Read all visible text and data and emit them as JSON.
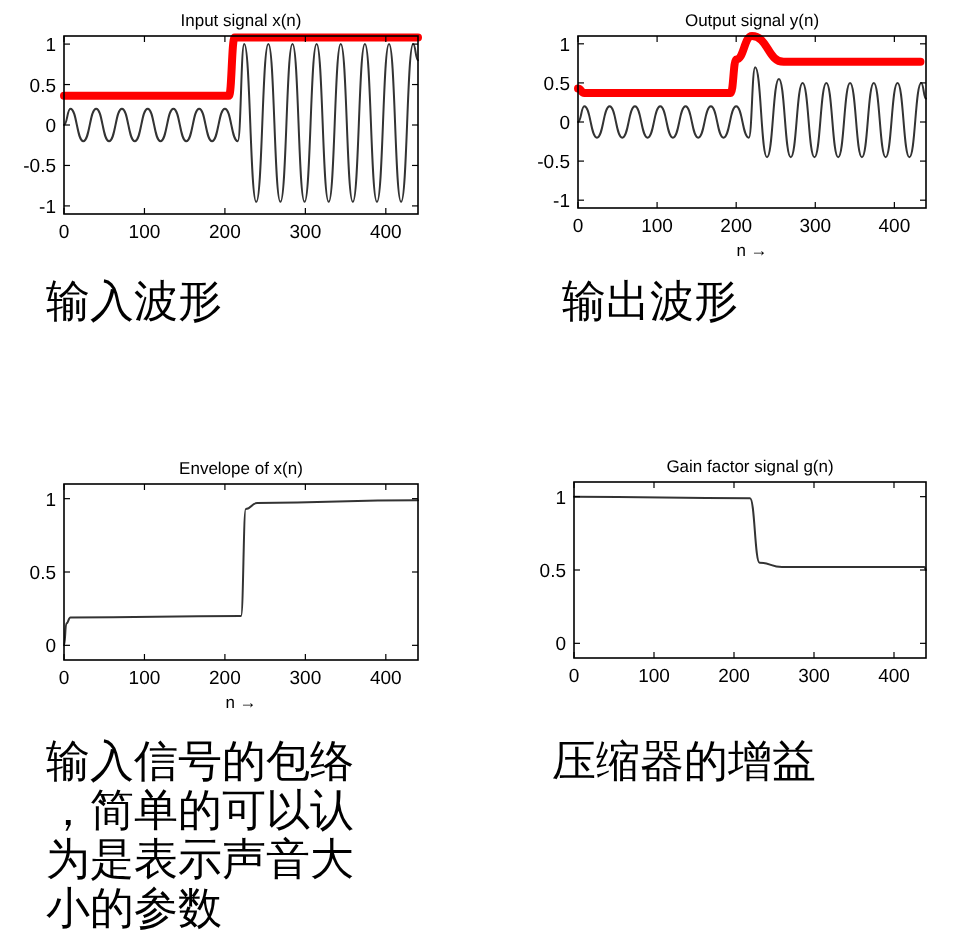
{
  "chart_data": [
    {
      "type": "line",
      "title": "Input signal x(n)",
      "xlim": [
        0,
        440
      ],
      "ylim": [
        -1.1,
        1.1
      ],
      "xticks": [
        0,
        100,
        200,
        300,
        400
      ],
      "yticks": [
        -1,
        -0.5,
        0,
        0.5,
        1
      ],
      "annotations": [
        "输入波形"
      ],
      "series": [
        {
          "color": "#333333",
          "x": [
            0,
            8,
            24,
            40,
            56,
            72,
            88,
            104,
            120,
            136,
            152,
            168,
            184,
            200,
            216,
            224,
            239,
            254,
            269,
            284,
            299,
            314,
            329,
            344,
            359,
            374,
            389,
            404,
            419,
            434,
            440
          ],
          "values": [
            0,
            0.2,
            -0.2,
            0.2,
            -0.2,
            0.2,
            -0.2,
            0.2,
            -0.2,
            0.2,
            -0.2,
            0.2,
            -0.2,
            0.2,
            -0.2,
            1,
            -0.95,
            1,
            -0.95,
            1,
            -0.95,
            1,
            -0.95,
            1,
            -0.95,
            1,
            -0.95,
            1,
            -0.95,
            1,
            0.8
          ]
        },
        {
          "color": "#ff0000",
          "x": [
            0,
            205,
            212,
            440
          ],
          "values": [
            0.36,
            0.36,
            1.08,
            1.08
          ]
        }
      ]
    },
    {
      "type": "line",
      "title": "Output signal y(n)",
      "xlabel": "n →",
      "xlim": [
        0,
        440
      ],
      "ylim": [
        -1.1,
        1.1
      ],
      "xticks": [
        0,
        100,
        200,
        300,
        400
      ],
      "yticks": [
        -1,
        -0.5,
        0,
        0.5,
        1
      ],
      "annotations": [
        "输出波形"
      ],
      "series": [
        {
          "color": "#333333",
          "x": [
            0,
            8,
            24,
            40,
            56,
            72,
            88,
            104,
            120,
            136,
            152,
            168,
            184,
            200,
            216,
            224,
            239,
            254,
            269,
            284,
            299,
            314,
            329,
            344,
            359,
            374,
            389,
            404,
            419,
            434,
            440
          ],
          "values": [
            0,
            0.2,
            -0.2,
            0.2,
            -0.2,
            0.2,
            -0.2,
            0.2,
            -0.2,
            0.2,
            -0.2,
            0.2,
            -0.2,
            0.2,
            -0.2,
            0.7,
            -0.45,
            0.55,
            -0.45,
            0.5,
            -0.45,
            0.5,
            -0.45,
            0.5,
            -0.45,
            0.5,
            -0.45,
            0.5,
            -0.45,
            0.5,
            0.3
          ]
        },
        {
          "color": "#ff0000",
          "x": [
            0,
            8,
            193,
            200,
            220,
            260,
            433
          ],
          "values": [
            0.43,
            0.37,
            0.37,
            0.8,
            1.1,
            0.77,
            0.77
          ]
        }
      ]
    },
    {
      "type": "line",
      "title": "Envelope of x(n)",
      "xlabel": "n →",
      "xlim": [
        0,
        440
      ],
      "ylim": [
        -0.1,
        1.1
      ],
      "xticks": [
        0,
        100,
        200,
        300,
        400
      ],
      "yticks": [
        0,
        0.5,
        1
      ],
      "annotations": [
        "输入信号的包络，简单的可以认为是表示声音大小的参数"
      ],
      "series": [
        {
          "color": "#333333",
          "x": [
            0,
            3,
            8,
            220,
            226,
            240,
            440
          ],
          "values": [
            0,
            0.15,
            0.19,
            0.2,
            0.93,
            0.97,
            0.99
          ]
        }
      ]
    },
    {
      "type": "line",
      "title": "Gain factor signal g(n)",
      "xlim": [
        0,
        440
      ],
      "ylim": [
        -0.1,
        1.1
      ],
      "xticks": [
        0,
        100,
        200,
        300,
        400
      ],
      "yticks": [
        0,
        0.5,
        1
      ],
      "annotations": [
        "压缩器的增益"
      ],
      "series": [
        {
          "color": "#333333",
          "x": [
            0,
            220,
            232,
            260,
            438,
            440
          ],
          "values": [
            1,
            0.99,
            0.55,
            0.52,
            0.52,
            0.5
          ]
        }
      ]
    }
  ]
}
